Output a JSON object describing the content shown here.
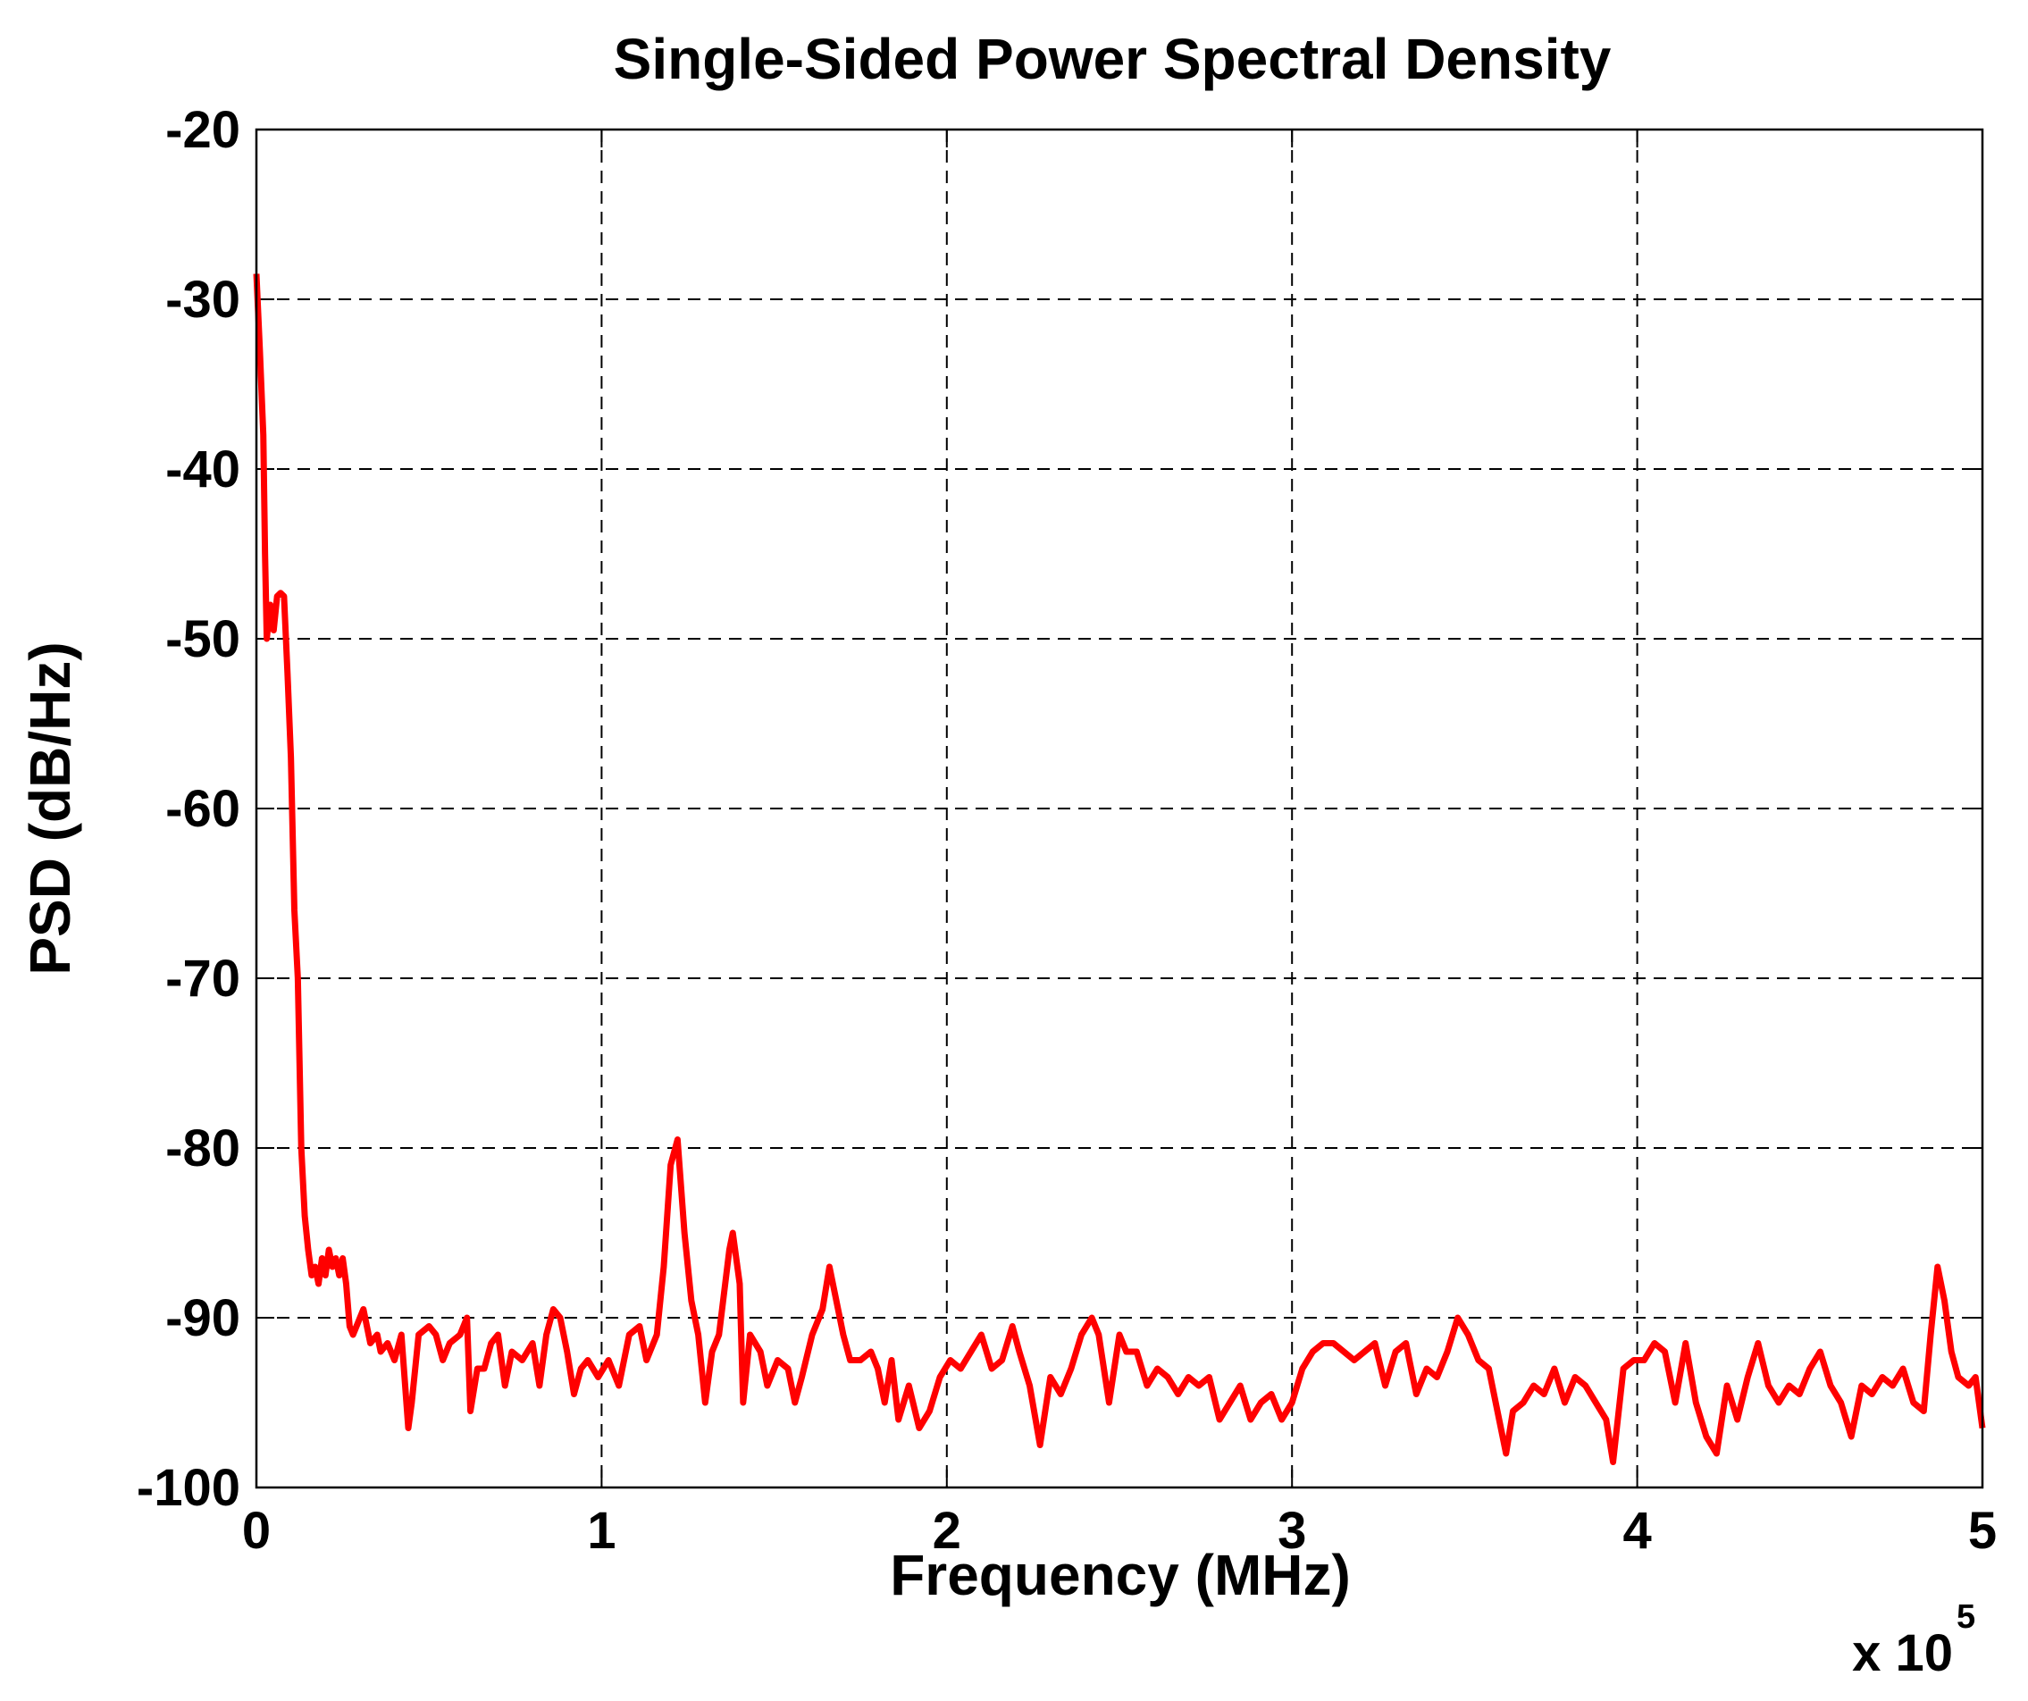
{
  "chart_data": {
    "type": "line",
    "title": "Single-Sided Power Spectral Density",
    "x_label": "Frequency (MHz)",
    "y_label": "PSD (dB/Hz)",
    "x_scale_label": "x 10",
    "x_scale_exponent": "5",
    "xlim": [
      0,
      5
    ],
    "ylim": [
      -100,
      -20
    ],
    "xticks": [
      0,
      1,
      2,
      3,
      4,
      5
    ],
    "yticks": [
      -20,
      -30,
      -40,
      -50,
      -60,
      -70,
      -80,
      -90,
      -100
    ],
    "grid": true,
    "series": [
      {
        "color": "#ff0000",
        "x": [
          0,
          0.01,
          0.02,
          0.025,
          0.03,
          0.04,
          0.05,
          0.06,
          0.07,
          0.08,
          0.09,
          0.1,
          0.11,
          0.12,
          0.13,
          0.14,
          0.15,
          0.16,
          0.17,
          0.18,
          0.19,
          0.2,
          0.21,
          0.22,
          0.23,
          0.24,
          0.25,
          0.26,
          0.27,
          0.28,
          0.3,
          0.31,
          0.33,
          0.35,
          0.36,
          0.38,
          0.4,
          0.42,
          0.44,
          0.45,
          0.47,
          0.5,
          0.52,
          0.54,
          0.56,
          0.59,
          0.61,
          0.62,
          0.64,
          0.66,
          0.68,
          0.7,
          0.72,
          0.74,
          0.77,
          0.8,
          0.82,
          0.84,
          0.86,
          0.88,
          0.9,
          0.92,
          0.94,
          0.96,
          0.99,
          1.02,
          1.05,
          1.08,
          1.11,
          1.13,
          1.16,
          1.18,
          1.2,
          1.22,
          1.24,
          1.26,
          1.28,
          1.3,
          1.32,
          1.34,
          1.37,
          1.38,
          1.4,
          1.41,
          1.43,
          1.46,
          1.48,
          1.51,
          1.54,
          1.56,
          1.58,
          1.61,
          1.64,
          1.66,
          1.68,
          1.7,
          1.72,
          1.75,
          1.78,
          1.8,
          1.82,
          1.84,
          1.86,
          1.89,
          1.92,
          1.95,
          1.98,
          2.01,
          2.04,
          2.07,
          2.1,
          2.13,
          2.16,
          2.19,
          2.21,
          2.24,
          2.27,
          2.3,
          2.33,
          2.36,
          2.39,
          2.42,
          2.44,
          2.47,
          2.5,
          2.52,
          2.55,
          2.58,
          2.61,
          2.64,
          2.67,
          2.7,
          2.73,
          2.76,
          2.79,
          2.82,
          2.85,
          2.88,
          2.91,
          2.94,
          2.97,
          3.0,
          3.03,
          3.06,
          3.09,
          3.12,
          3.15,
          3.18,
          3.21,
          3.24,
          3.27,
          3.3,
          3.33,
          3.36,
          3.39,
          3.42,
          3.45,
          3.48,
          3.51,
          3.54,
          3.57,
          3.6,
          3.62,
          3.64,
          3.67,
          3.7,
          3.73,
          3.76,
          3.79,
          3.82,
          3.85,
          3.88,
          3.91,
          3.93,
          3.96,
          3.99,
          4.02,
          4.05,
          4.08,
          4.11,
          4.14,
          4.17,
          4.2,
          4.23,
          4.26,
          4.29,
          4.32,
          4.35,
          4.38,
          4.41,
          4.44,
          4.47,
          4.5,
          4.53,
          4.56,
          4.59,
          4.62,
          4.65,
          4.68,
          4.71,
          4.74,
          4.77,
          4.8,
          4.83,
          4.85,
          4.87,
          4.89,
          4.91,
          4.93,
          4.96,
          4.98,
          5.0
        ],
        "values": [
          -28.5,
          -33,
          -38,
          -45,
          -50,
          -48,
          -49.5,
          -47.5,
          -47.3,
          -47.5,
          -52,
          -57,
          -66,
          -70,
          -80,
          -84,
          -86,
          -87.5,
          -87,
          -88,
          -86.5,
          -87.5,
          -86,
          -87,
          -86.5,
          -87.5,
          -86.5,
          -88,
          -90.5,
          -91,
          -90,
          -89.5,
          -91.5,
          -91,
          -92,
          -91.5,
          -92.5,
          -91,
          -96.5,
          -95,
          -91,
          -90.5,
          -91,
          -92.5,
          -91.5,
          -91,
          -90,
          -95.5,
          -93,
          -93,
          -91.5,
          -91,
          -94,
          -92,
          -92.5,
          -91.5,
          -94,
          -91,
          -89.5,
          -90,
          -92,
          -94.5,
          -93,
          -92.5,
          -93.5,
          -92.5,
          -94,
          -91,
          -90.5,
          -92.5,
          -91,
          -87,
          -81,
          -79.5,
          -85,
          -89,
          -91,
          -95,
          -92,
          -91,
          -86,
          -85,
          -88,
          -95,
          -91,
          -92,
          -94,
          -92.5,
          -93,
          -95,
          -93.5,
          -91,
          -89.5,
          -87,
          -89,
          -91,
          -92.5,
          -92.5,
          -92,
          -93,
          -95,
          -92.5,
          -96,
          -94,
          -96.5,
          -95.5,
          -93.5,
          -92.5,
          -93,
          -92,
          -91,
          -93,
          -92.5,
          -90.5,
          -92,
          -94,
          -97.5,
          -93.5,
          -94.5,
          -93,
          -91,
          -90,
          -91,
          -95,
          -91,
          -92,
          -92,
          -94,
          -93,
          -93.5,
          -94.5,
          -93.5,
          -94,
          -93.5,
          -96,
          -95,
          -94,
          -96,
          -95,
          -94.5,
          -96,
          -95,
          -93,
          -92,
          -91.5,
          -91.5,
          -92,
          -92.5,
          -92,
          -91.5,
          -94,
          -92,
          -91.5,
          -94.5,
          -93,
          -93.5,
          -92,
          -90,
          -91,
          -92.5,
          -93,
          -96,
          -98,
          -95.5,
          -95,
          -94,
          -94.5,
          -93,
          -95,
          -93.5,
          -94,
          -95,
          -96,
          -98.5,
          -93,
          -92.5,
          -92.5,
          -91.5,
          -92,
          -95,
          -91.5,
          -95,
          -97,
          -98,
          -94,
          -96,
          -93.5,
          -91.5,
          -94,
          -95,
          -94,
          -94.5,
          -93,
          -92,
          -94,
          -95,
          -97,
          -94,
          -94.5,
          -93.5,
          -94,
          -93,
          -95,
          -95.5,
          -91,
          -87,
          -89,
          -92,
          -93.5,
          -94,
          -93.5,
          -96.5
        ]
      }
    ]
  }
}
